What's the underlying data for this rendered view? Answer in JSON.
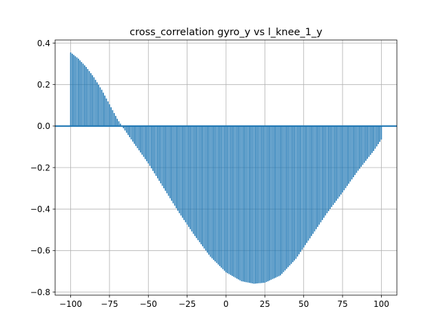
{
  "chart_data": {
    "type": "bar",
    "title": "cross_correlation gyro_y vs l_knee_1_y",
    "xlabel": "",
    "ylabel": "",
    "xlim": [
      -110,
      110
    ],
    "ylim": [
      -0.815,
      0.415
    ],
    "x_ticks": [
      -100,
      -75,
      -50,
      -25,
      0,
      25,
      50,
      75,
      100
    ],
    "x_tick_labels": [
      "−100",
      "−75",
      "−50",
      "−25",
      "0",
      "25",
      "50",
      "75",
      "100"
    ],
    "y_ticks": [
      -0.8,
      -0.6,
      -0.4,
      -0.2,
      0.0,
      0.2,
      0.4
    ],
    "y_tick_labels": [
      "−0.8",
      "−0.6",
      "−0.4",
      "−0.2",
      "0.0",
      "0.2",
      "0.4"
    ],
    "grid": true,
    "baseline": 0,
    "series": [
      {
        "lag_range": [
          -100,
          100
        ],
        "anchors": [
          [
            -100,
            0.355
          ],
          [
            -95,
            0.325
          ],
          [
            -90,
            0.285
          ],
          [
            -85,
            0.235
          ],
          [
            -80,
            0.175
          ],
          [
            -75,
            0.105
          ],
          [
            -70,
            0.035
          ],
          [
            -67,
            0.0
          ],
          [
            -60,
            -0.075
          ],
          [
            -50,
            -0.18
          ],
          [
            -40,
            -0.3
          ],
          [
            -30,
            -0.42
          ],
          [
            -20,
            -0.53
          ],
          [
            -10,
            -0.63
          ],
          [
            0,
            -0.705
          ],
          [
            10,
            -0.748
          ],
          [
            18,
            -0.76
          ],
          [
            25,
            -0.755
          ],
          [
            35,
            -0.72
          ],
          [
            45,
            -0.64
          ],
          [
            55,
            -0.53
          ],
          [
            65,
            -0.42
          ],
          [
            75,
            -0.32
          ],
          [
            85,
            -0.215
          ],
          [
            95,
            -0.12
          ],
          [
            100,
            -0.065
          ]
        ],
        "color": "#1f77b4"
      }
    ]
  }
}
